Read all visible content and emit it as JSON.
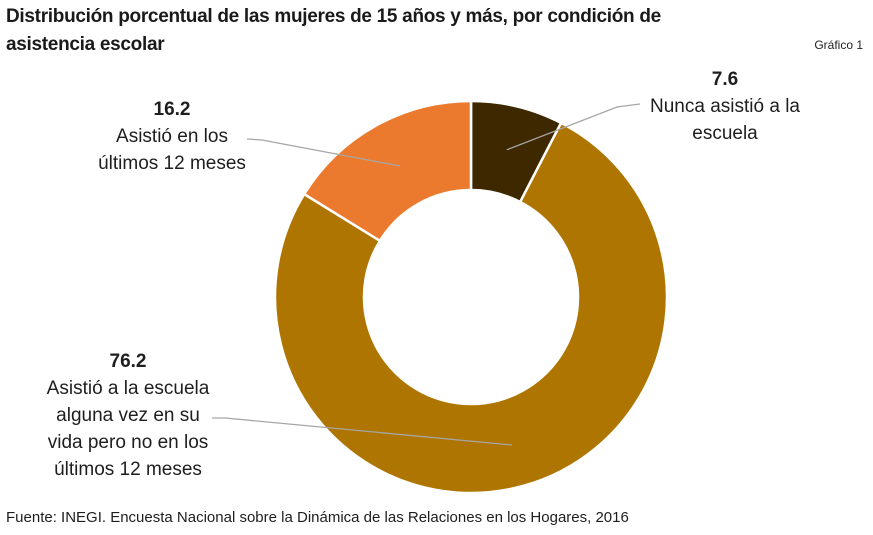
{
  "chart_data": {
    "type": "pie",
    "variant": "donut",
    "title": "Distribución porcentual de las mujeres de 15 años y más, por condición de asistencia escolar",
    "badge": "Gráfico 1",
    "slices": [
      {
        "label": "Nunca asistió a la escuela",
        "value": 7.6,
        "value_text": "7.6",
        "color": "#3d2800"
      },
      {
        "label": "Asistió a la escuela alguna vez en su vida pero no en los últimos 12 meses",
        "value": 76.2,
        "value_text": "76.2",
        "color": "#ae7500"
      },
      {
        "label": "Asistió en los últimos 12 meses",
        "value": 16.2,
        "value_text": "16.2",
        "color": "#ec7a2e"
      }
    ],
    "label_lines": {
      "0": [
        "Nunca asistió a la",
        "escuela"
      ],
      "1": [
        "Asistió a la escuela",
        "alguna vez en su",
        "vida pero no en los",
        "últimos 12 meses"
      ],
      "2": [
        "Asistió en los",
        "últimos 12 meses"
      ]
    },
    "start": "top (12 o'clock), clockwise",
    "legend": "none (data labels with leader lines)",
    "source": "Fuente: INEGI. Encuesta Nacional sobre la Dinámica de las Relaciones en los Hogares, 2016"
  }
}
